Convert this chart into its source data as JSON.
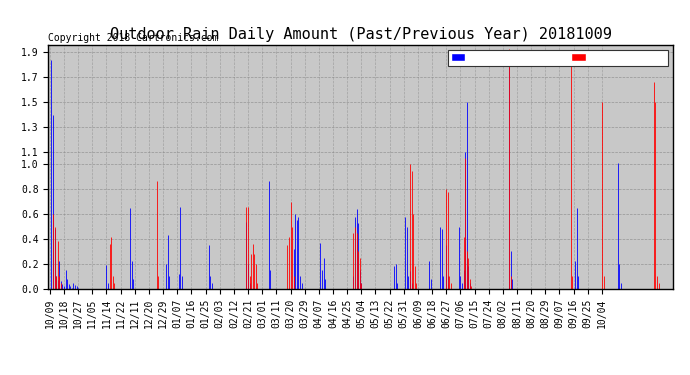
{
  "title": "Outdoor Rain Daily Amount (Past/Previous Year) 20181009",
  "copyright": "Copyright 2018 Cartronics.com",
  "previous_color": "#0000ff",
  "past_color": "#ff0000",
  "background_color": "#ffffff",
  "plot_bg_color": "#c8c8c8",
  "ylim": [
    0.0,
    1.96
  ],
  "yticks": [
    0.0,
    0.2,
    0.4,
    0.6,
    0.8,
    1.0,
    1.1,
    1.3,
    1.5,
    1.7,
    1.9
  ],
  "xtick_labels": [
    "10/09",
    "10/18",
    "10/27",
    "11/05",
    "11/14",
    "11/22",
    "12/11",
    "12/20",
    "12/29",
    "01/07",
    "01/16",
    "01/25",
    "02/03",
    "02/12",
    "02/21",
    "03/01",
    "03/11",
    "03/20",
    "03/29",
    "04/07",
    "04/16",
    "04/25",
    "05/04",
    "05/13",
    "05/22",
    "05/31",
    "06/09",
    "06/18",
    "06/27",
    "07/06",
    "07/15",
    "07/24",
    "08/02",
    "08/11",
    "08/20",
    "08/29",
    "09/07",
    "09/16",
    "09/25",
    "10/04"
  ],
  "title_fontsize": 11,
  "copyright_fontsize": 7,
  "tick_fontsize": 7,
  "legend_fontsize": 7,
  "num_points": 366,
  "previous_data": [
    0.0,
    1.84,
    1.4,
    0.48,
    0.1,
    0.07,
    0.22,
    0.06,
    0.04,
    0.02,
    0.15,
    0.08,
    0.04,
    0.02,
    0.01,
    0.05,
    0.03,
    0.02,
    0.01,
    0.0,
    0.0,
    0.0,
    0.0,
    0.0,
    0.0,
    0.0,
    0.0,
    0.0,
    0.0,
    0.0,
    0.0,
    0.0,
    0.0,
    0.0,
    0.0,
    0.0,
    0.19,
    0.05,
    0.0,
    0.0,
    0.0,
    0.0,
    0.0,
    0.0,
    0.0,
    0.0,
    0.0,
    0.0,
    0.0,
    0.0,
    0.0,
    0.65,
    0.22,
    0.08,
    0.0,
    0.0,
    0.0,
    0.0,
    0.0,
    0.0,
    0.0,
    0.0,
    0.0,
    0.0,
    0.0,
    0.0,
    0.0,
    0.0,
    0.0,
    0.0,
    0.0,
    0.0,
    0.0,
    0.0,
    0.2,
    0.43,
    0.1,
    0.0,
    0.0,
    0.0,
    0.0,
    0.0,
    0.12,
    0.66,
    0.1,
    0.0,
    0.0,
    0.0,
    0.0,
    0.0,
    0.0,
    0.0,
    0.0,
    0.0,
    0.0,
    0.0,
    0.0,
    0.0,
    0.0,
    0.0,
    0.0,
    0.35,
    0.1,
    0.05,
    0.0,
    0.0,
    0.0,
    0.0,
    0.0,
    0.0,
    0.0,
    0.0,
    0.0,
    0.0,
    0.0,
    0.0,
    0.0,
    0.0,
    0.0,
    0.0,
    0.0,
    0.0,
    0.0,
    0.0,
    0.0,
    0.54,
    0.2,
    0.05,
    0.0,
    0.0,
    0.0,
    0.0,
    0.0,
    0.0,
    0.0,
    0.0,
    0.0,
    0.0,
    0.0,
    0.87,
    0.15,
    0.0,
    0.0,
    0.0,
    0.0,
    0.0,
    0.0,
    0.0,
    0.0,
    0.0,
    0.0,
    0.0,
    0.0,
    0.0,
    0.0,
    0.32,
    0.6,
    0.55,
    0.58,
    0.1,
    0.05,
    0.0,
    0.0,
    0.0,
    0.0,
    0.0,
    0.0,
    0.0,
    0.0,
    0.0,
    0.0,
    0.0,
    0.37,
    0.15,
    0.25,
    0.08,
    0.0,
    0.0,
    0.0,
    0.0,
    0.0,
    0.0,
    0.0,
    0.0,
    0.0,
    0.0,
    0.0,
    0.0,
    0.0,
    0.0,
    0.0,
    0.0,
    0.0,
    0.1,
    0.58,
    0.64,
    0.53,
    0.15,
    0.05,
    0.0,
    0.0,
    0.0,
    0.0,
    0.0,
    0.0,
    0.0,
    0.0,
    0.0,
    0.0,
    0.0,
    0.0,
    0.0,
    0.0,
    0.0,
    0.0,
    0.0,
    0.0,
    0.0,
    0.0,
    0.18,
    0.2,
    0.05,
    0.0,
    0.0,
    0.0,
    0.0,
    0.58,
    0.5,
    0.1,
    0.14,
    0.05,
    0.0,
    0.0,
    0.0,
    0.0,
    0.0,
    0.0,
    0.0,
    0.0,
    0.0,
    0.0,
    0.22,
    0.08,
    0.0,
    0.0,
    0.0,
    0.0,
    0.0,
    0.5,
    0.48,
    0.1,
    0.0,
    0.35,
    0.1,
    0.0,
    0.0,
    0.0,
    0.0,
    0.0,
    0.0,
    0.5,
    0.1,
    0.05,
    0.15,
    1.1,
    1.5,
    0.18,
    0.05,
    0.0,
    0.0,
    0.0,
    0.0,
    0.0,
    0.0,
    0.0,
    0.0,
    0.0,
    0.0,
    0.0,
    0.0,
    0.0,
    0.0,
    0.0,
    0.0,
    0.0,
    0.0,
    0.0,
    0.0,
    0.0,
    0.0,
    0.0,
    0.0,
    1.78,
    0.3,
    0.08,
    0.0,
    0.0,
    0.0,
    0.0,
    0.0,
    0.0,
    0.0,
    0.0,
    0.0,
    0.0,
    0.0,
    0.0,
    0.0,
    0.0,
    0.0,
    0.0,
    0.0,
    0.0,
    0.0,
    0.0,
    0.0,
    0.0,
    0.0,
    0.0,
    0.0,
    0.0,
    0.0,
    0.0,
    0.0,
    0.0,
    0.0,
    0.0,
    0.0,
    0.0,
    0.0,
    0.0,
    0.0,
    0.0,
    0.0,
    0.22,
    0.65,
    0.1,
    0.0,
    0.0,
    0.0,
    0.0,
    0.0,
    0.0,
    0.0,
    0.0,
    0.0,
    0.0,
    0.0,
    0.0,
    0.0,
    0.0,
    0.0,
    0.0,
    0.0,
    0.0,
    0.0,
    0.0,
    0.0,
    0.0,
    0.0,
    0.0,
    1.01,
    0.2,
    0.05,
    0.0,
    0.0,
    0.0,
    0.0,
    0.0,
    0.0,
    0.0,
    0.0,
    0.0,
    0.0,
    0.0,
    0.0,
    0.0,
    0.0,
    0.0,
    0.0,
    0.0,
    0.0,
    0.0,
    0.0,
    0.0,
    0.0,
    0.0,
    0.0,
    0.0,
    0.0,
    0.0,
    0.0,
    0.0,
    0.0,
    0.0,
    0.0
  ],
  "past_data": [
    0.0,
    0.0,
    0.6,
    0.5,
    0.1,
    0.38,
    0.1,
    0.05,
    0.0,
    0.0,
    0.0,
    0.0,
    0.0,
    0.0,
    0.0,
    0.0,
    0.0,
    0.0,
    0.0,
    0.0,
    0.0,
    0.0,
    0.0,
    0.0,
    0.0,
    0.0,
    0.0,
    0.0,
    0.0,
    0.0,
    0.0,
    0.0,
    0.0,
    0.0,
    0.0,
    0.0,
    0.0,
    0.0,
    0.36,
    0.42,
    0.1,
    0.05,
    0.0,
    0.0,
    0.0,
    0.0,
    0.0,
    0.0,
    0.0,
    0.0,
    0.0,
    0.0,
    0.0,
    0.0,
    0.0,
    0.0,
    0.0,
    0.0,
    0.0,
    0.0,
    0.0,
    0.0,
    0.0,
    0.0,
    0.0,
    0.0,
    0.0,
    0.0,
    0.87,
    0.1,
    0.0,
    0.0,
    0.0,
    0.0,
    0.0,
    0.0,
    0.0,
    0.0,
    0.0,
    0.0,
    0.0,
    0.0,
    0.0,
    0.0,
    0.0,
    0.0,
    0.0,
    0.0,
    0.0,
    0.0,
    0.0,
    0.0,
    0.0,
    0.0,
    0.0,
    0.0,
    0.0,
    0.0,
    0.0,
    0.0,
    0.0,
    0.0,
    0.0,
    0.0,
    0.0,
    0.0,
    0.0,
    0.0,
    0.0,
    0.0,
    0.0,
    0.0,
    0.0,
    0.0,
    0.0,
    0.0,
    0.0,
    0.0,
    0.0,
    0.0,
    0.0,
    0.0,
    0.0,
    0.0,
    0.0,
    0.66,
    0.66,
    0.1,
    0.28,
    0.36,
    0.28,
    0.2,
    0.05,
    0.0,
    0.0,
    0.0,
    0.0,
    0.0,
    0.0,
    0.0,
    0.0,
    0.0,
    0.0,
    0.0,
    0.0,
    0.0,
    0.0,
    0.0,
    0.0,
    0.0,
    0.0,
    0.35,
    0.42,
    0.7,
    0.5,
    0.1,
    0.0,
    0.0,
    0.0,
    0.0,
    0.0,
    0.0,
    0.0,
    0.0,
    0.0,
    0.0,
    0.0,
    0.0,
    0.0,
    0.0,
    0.0,
    0.0,
    0.0,
    0.0,
    0.0,
    0.0,
    0.0,
    0.0,
    0.0,
    0.0,
    0.0,
    0.0,
    0.0,
    0.0,
    0.0,
    0.0,
    0.0,
    0.0,
    0.0,
    0.0,
    0.0,
    0.0,
    0.0,
    0.45,
    0.5,
    0.45,
    0.3,
    0.25,
    0.05,
    0.0,
    0.0,
    0.0,
    0.0,
    0.0,
    0.0,
    0.0,
    0.0,
    0.0,
    0.0,
    0.0,
    0.0,
    0.0,
    0.0,
    0.0,
    0.0,
    0.0,
    0.0,
    0.0,
    0.0,
    0.0,
    0.0,
    0.0,
    0.0,
    0.0,
    0.0,
    0.0,
    0.0,
    0.0,
    0.0,
    1.0,
    0.95,
    0.6,
    0.18,
    0.05,
    0.0,
    0.0,
    0.0,
    0.0,
    0.0,
    0.0,
    0.0,
    0.0,
    0.0,
    0.0,
    0.0,
    0.0,
    0.0,
    0.0,
    0.0,
    0.0,
    0.0,
    0.0,
    0.8,
    0.78,
    0.1,
    0.05,
    0.0,
    0.0,
    0.0,
    0.0,
    0.0,
    0.0,
    0.0,
    0.42,
    1.05,
    0.3,
    0.25,
    0.08,
    0.02,
    0.0,
    0.0,
    0.0,
    0.0,
    0.0,
    0.0,
    0.0,
    0.0,
    0.0,
    0.0,
    0.0,
    0.0,
    0.0,
    0.0,
    0.0,
    0.0,
    0.0,
    0.0,
    0.0,
    0.0,
    0.0,
    0.0,
    0.0,
    1.93,
    0.1,
    0.0,
    0.0,
    0.0,
    0.0,
    0.0,
    0.0,
    0.0,
    0.0,
    0.0,
    0.0,
    0.0,
    0.0,
    0.0,
    0.0,
    0.0,
    0.0,
    0.0,
    0.0,
    0.0,
    0.0,
    0.0,
    0.0,
    0.0,
    0.0,
    0.0,
    0.0,
    0.0,
    0.0,
    0.0,
    0.0,
    0.0,
    0.0,
    0.0,
    0.0,
    0.0,
    0.0,
    0.0,
    1.88,
    0.1,
    0.0,
    0.0,
    0.0,
    0.0,
    0.0,
    0.0,
    0.0,
    0.0,
    0.0,
    0.0,
    0.0,
    0.0,
    0.0,
    0.0,
    0.0,
    0.0,
    0.0,
    0.0,
    1.5,
    0.1,
    0.0,
    0.0,
    0.0,
    0.0,
    0.0,
    0.0,
    0.0,
    0.0,
    0.0,
    0.0,
    0.0,
    0.0,
    0.0,
    0.0,
    0.0,
    0.0,
    0.0,
    0.0,
    0.0,
    0.0,
    0.0,
    0.0,
    0.0,
    0.0,
    0.0,
    0.0,
    0.0,
    0.0,
    0.0,
    0.0,
    0.0,
    1.66,
    1.5,
    0.1,
    0.05,
    0.0,
    0.0,
    0.0,
    0.0,
    0.0,
    0.0,
    0.0,
    0.0
  ]
}
